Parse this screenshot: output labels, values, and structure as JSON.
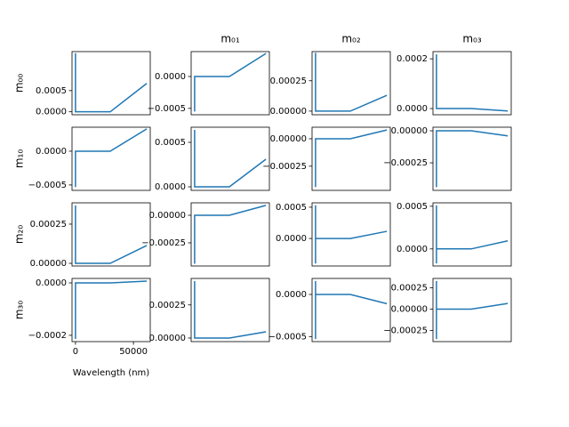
{
  "chart_data": [
    {
      "type": "line",
      "ylabel": "m₀₀",
      "x": [
        0,
        0,
        30000,
        61500
      ],
      "values": [
        0.00138,
        0,
        0,
        0.00067
      ],
      "color": "#1f77b4",
      "xlim": [
        -3000,
        64500
      ],
      "ylim": [
        -7e-05,
        0.00142
      ],
      "yticks": [
        {
          "value": 0,
          "label": "0.0000"
        },
        0.0005
      ]
    },
    {
      "type": "line",
      "title": "m₀₁",
      "x": [
        0,
        0,
        30000,
        61500
      ],
      "values": [
        -0.00055,
        0,
        0,
        0.00036
      ],
      "color": "#1f77b4",
      "xlim": [
        -3000,
        64500
      ],
      "ylim": [
        -0.0006,
        0.00039
      ],
      "yticks": [
        {
          "value": -0.0005,
          "label": "−0.0005"
        },
        {
          "value": 0,
          "label": "0.0000"
        }
      ]
    },
    {
      "type": "line",
      "title": "m₀₂",
      "x": [
        0,
        0,
        30000,
        61500
      ],
      "values": [
        0.00048,
        0,
        0,
        0.00013
      ],
      "color": "#1f77b4",
      "xlim": [
        -3000,
        64500
      ],
      "ylim": [
        -3e-05,
        0.00049
      ],
      "yticks": [
        {
          "value": 0,
          "label": "0.00000"
        },
        0.00025
      ]
    },
    {
      "type": "line",
      "title": "m₀₃",
      "x": [
        0,
        0,
        30000,
        61500
      ],
      "values": [
        0.000218,
        0,
        0,
        -1e-05
      ],
      "color": "#1f77b4",
      "xlim": [
        -3000,
        64500
      ],
      "ylim": [
        -2.5e-05,
        0.000229
      ],
      "yticks": [
        {
          "value": 0,
          "label": "0.0000"
        },
        0.0002
      ]
    },
    {
      "type": "line",
      "ylabel": "m₁₀",
      "x": [
        0,
        0,
        30000,
        61500
      ],
      "values": [
        -0.00053,
        0,
        0,
        0.00033
      ],
      "color": "#1f77b4",
      "xlim": [
        -3000,
        64500
      ],
      "ylim": [
        -0.00058,
        0.000355
      ],
      "yticks": [
        {
          "value": -0.0005,
          "label": "−0.0005"
        },
        {
          "value": 0,
          "label": "0.0000"
        }
      ]
    },
    {
      "type": "line",
      "x": [
        0,
        0,
        30000,
        61500
      ],
      "values": [
        0.00064,
        0,
        0,
        0.00031
      ],
      "color": "#1f77b4",
      "xlim": [
        -3000,
        64500
      ],
      "ylim": [
        -4e-05,
        0.00067
      ],
      "yticks": [
        {
          "value": 0,
          "label": "0.0000"
        },
        0.0005
      ]
    },
    {
      "type": "line",
      "x": [
        0,
        0,
        30000,
        61500
      ],
      "values": [
        -0.00044,
        0,
        0,
        8e-05
      ],
      "color": "#1f77b4",
      "xlim": [
        -3000,
        64500
      ],
      "ylim": [
        -0.00047,
        0.000105
      ],
      "yticks": [
        {
          "value": -0.00025,
          "label": "−0.00025"
        },
        {
          "value": 0,
          "label": "0.00000"
        }
      ]
    },
    {
      "type": "line",
      "x": [
        0,
        0,
        30000,
        61500
      ],
      "values": [
        -0.00044,
        0,
        0,
        -4e-05
      ],
      "color": "#1f77b4",
      "xlim": [
        -3000,
        64500
      ],
      "ylim": [
        -0.000465,
        2.8e-05
      ],
      "yticks": [
        {
          "value": -0.00025,
          "label": "−0.00025"
        },
        {
          "value": 0,
          "label": "0.00000"
        }
      ]
    },
    {
      "type": "line",
      "ylabel": "m₂₀",
      "x": [
        0,
        0,
        30000,
        61500
      ],
      "values": [
        0.00037,
        0,
        0,
        0.000114
      ],
      "color": "#1f77b4",
      "xlim": [
        -3000,
        64500
      ],
      "ylim": [
        -1.7e-05,
        0.000386
      ],
      "yticks": [
        {
          "value": 0,
          "label": "0.00000"
        },
        0.00025
      ]
    },
    {
      "type": "line",
      "x": [
        0,
        0,
        30000,
        61500
      ],
      "values": [
        -0.00044,
        0,
        0,
        9e-05
      ],
      "color": "#1f77b4",
      "xlim": [
        -3000,
        64500
      ],
      "ylim": [
        -0.00046,
        0.000113
      ],
      "yticks": [
        {
          "value": -0.00025,
          "label": "−0.00025"
        },
        {
          "value": 0,
          "label": "0.00000"
        }
      ]
    },
    {
      "type": "line",
      "x": [
        0,
        0,
        0,
        30000,
        61500
      ],
      "values": [
        0.00053,
        -0.0004,
        0,
        0,
        0.000114
      ],
      "color": "#1f77b4",
      "xlim": [
        -3000,
        64500
      ],
      "ylim": [
        -0.00044,
        0.00057
      ],
      "yticks": [
        {
          "value": 0,
          "label": "0.0000"
        },
        0.0005
      ]
    },
    {
      "type": "line",
      "x": [
        0,
        0,
        0,
        30000,
        61500
      ],
      "values": [
        0.00051,
        -0.00017,
        0,
        0,
        9.4e-05
      ],
      "color": "#1f77b4",
      "xlim": [
        -3000,
        64500
      ],
      "ylim": [
        -0.0002,
        0.00054
      ],
      "yticks": [
        {
          "value": 0,
          "label": "0.0000"
        },
        0.0005
      ]
    },
    {
      "type": "line",
      "ylabel": "m₃₀",
      "xlabel": "Wavelength (nm)",
      "x": [
        0,
        0,
        30000,
        61500
      ],
      "values": [
        -0.000214,
        0,
        0,
        7e-06
      ],
      "color": "#1f77b4",
      "xlim": [
        -3000,
        64500
      ],
      "ylim": [
        -0.000224,
        1.7e-05
      ],
      "yticks": [
        {
          "value": -0.0002,
          "label": "−0.0002"
        },
        {
          "value": 0,
          "label": "0.0000"
        }
      ],
      "xticks": [
        0,
        50000
      ]
    },
    {
      "type": "line",
      "x": [
        0,
        0,
        30000,
        61500
      ],
      "values": [
        0.00043,
        0,
        0,
        4.7e-05
      ],
      "color": "#1f77b4",
      "xlim": [
        -3000,
        64500
      ],
      "ylim": [
        -2.7e-05,
        0.00045
      ],
      "yticks": [
        {
          "value": 0,
          "label": "0.00000"
        },
        0.00025
      ]
    },
    {
      "type": "line",
      "x": [
        0,
        0,
        0,
        30000,
        61500
      ],
      "values": [
        0.00016,
        -0.00053,
        0,
        0,
        -0.00011
      ],
      "color": "#1f77b4",
      "xlim": [
        -3000,
        64500
      ],
      "ylim": [
        -0.00056,
        0.00019
      ],
      "yticks": [
        {
          "value": -0.0005,
          "label": "−0.0005"
        },
        {
          "value": 0,
          "label": "0.0000"
        }
      ]
    },
    {
      "type": "line",
      "x": [
        0,
        0,
        0,
        30000,
        61500
      ],
      "values": [
        0.00033,
        -0.00035,
        0,
        0,
        6.7e-05
      ],
      "color": "#1f77b4",
      "xlim": [
        -3000,
        64500
      ],
      "ylim": [
        -0.00038,
        0.00036
      ],
      "yticks": [
        {
          "value": -0.00025,
          "label": "−0.00025"
        },
        {
          "value": 0,
          "label": "0.00000"
        },
        0.00025
      ]
    }
  ]
}
